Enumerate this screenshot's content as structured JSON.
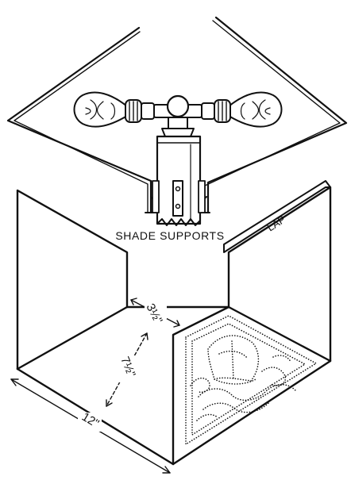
{
  "figure": {
    "caption": "SHADE SUPPORTS",
    "lap_label": "LAP",
    "dimensions": {
      "depth": "3½\"",
      "height": "7½\"",
      "width": "12\""
    }
  },
  "colors": {
    "ink": "#111111",
    "paper": "#ffffff"
  }
}
